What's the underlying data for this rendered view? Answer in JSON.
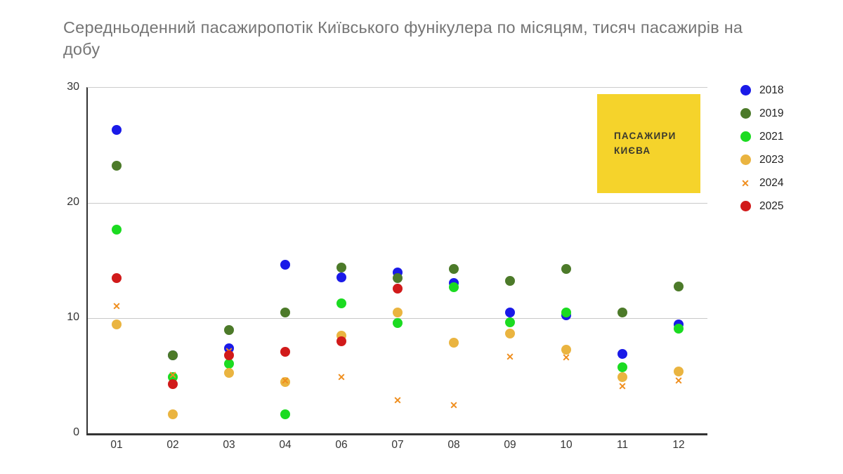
{
  "title": "Середньоденний пасажиропотік Київського фунікулера по місяцям, тисяч пасажирів на добу",
  "logo": {
    "line1": "ПАСАЖИРИ",
    "line2": "КИЄВА",
    "bg_color": "#f5d32b",
    "text_color": "#3b3a2e"
  },
  "colors": {
    "axis": "#333333",
    "gridline": "#c9c9c9",
    "title_text": "#757575",
    "tick_text": "#333333",
    "legend_text": "#212121"
  },
  "chart_data": {
    "type": "scatter",
    "title": "Середньоденний пасажиропотік Київського фунікулера по місяцям, тисяч пасажирів на добу",
    "xlabel": "",
    "ylabel": "",
    "categories": [
      "01",
      "02",
      "03",
      "04",
      "06",
      "07",
      "08",
      "09",
      "10",
      "11",
      "12"
    ],
    "ylim": [
      0,
      30
    ],
    "yticks": [
      0,
      10,
      20,
      30
    ],
    "grid": "horizontal, at 10 and 20",
    "legend_position": "right",
    "series": [
      {
        "name": "2018",
        "color": "#1a1ae8",
        "marker": "circle",
        "values": [
          26.3,
          6.7,
          7.3,
          14.6,
          13.5,
          13.9,
          13.0,
          10.4,
          10.2,
          6.8,
          9.4
        ]
      },
      {
        "name": "2019",
        "color": "#4c7a29",
        "marker": "circle",
        "values": [
          23.2,
          6.7,
          8.9,
          10.4,
          14.3,
          13.4,
          14.2,
          13.2,
          14.2,
          10.4,
          12.7
        ]
      },
      {
        "name": "2021",
        "color": "#1bdb21",
        "marker": "circle",
        "values": [
          17.6,
          4.8,
          6.0,
          1.6,
          11.2,
          9.5,
          12.6,
          9.6,
          10.4,
          5.7,
          9.0
        ]
      },
      {
        "name": "2023",
        "color": "#eab440",
        "marker": "circle",
        "values": [
          9.4,
          1.6,
          5.2,
          4.4,
          8.4,
          10.4,
          7.8,
          8.6,
          7.2,
          4.8,
          5.3
        ]
      },
      {
        "name": "2024",
        "color": "#ef8e1e",
        "marker": "x",
        "values": [
          11.0,
          5.0,
          7.1,
          4.5,
          4.8,
          2.8,
          2.4,
          6.6,
          6.5,
          4.0,
          4.5
        ]
      },
      {
        "name": "2025",
        "color": "#d11a1a",
        "marker": "circle",
        "values": [
          13.4,
          4.2,
          6.7,
          7.0,
          7.9,
          12.5,
          null,
          null,
          null,
          null,
          null
        ]
      }
    ]
  }
}
